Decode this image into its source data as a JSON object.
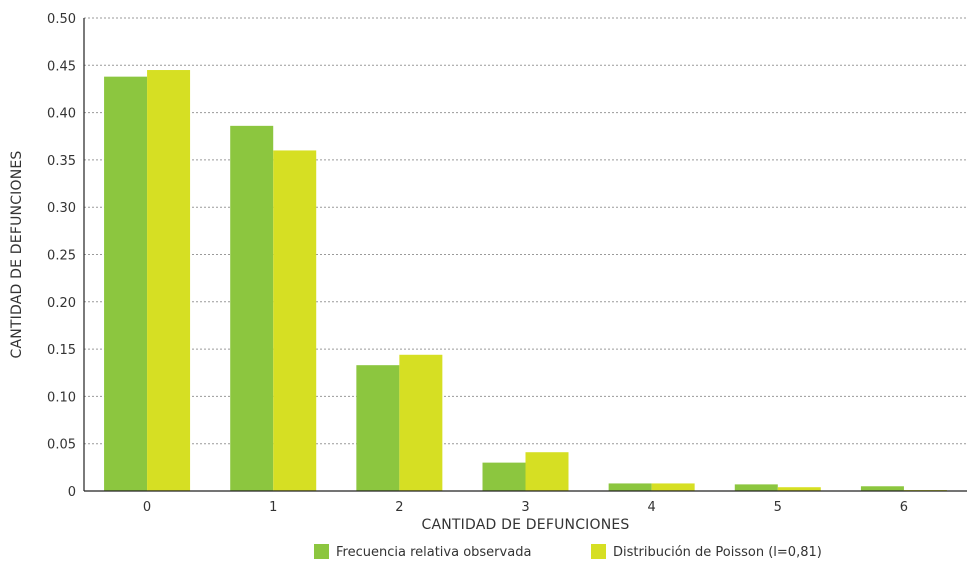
{
  "chart_data": {
    "type": "bar",
    "title": "",
    "xlabel": "CANTIDAD DE DEFUNCIONES",
    "ylabel": "CANTIDAD DE DEFUNCIONES",
    "categories": [
      "0",
      "1",
      "2",
      "3",
      "4",
      "5",
      "6"
    ],
    "ylim": [
      0,
      0.5
    ],
    "yticks": [
      "0",
      "0.05",
      "0.10",
      "0.15",
      "0.20",
      "0.25",
      "0.30",
      "0.35",
      "0.40",
      "0.45",
      "0.50"
    ],
    "grid": true,
    "legend_position": "bottom",
    "series": [
      {
        "name": "Frecuencia relativa observada",
        "color": "#8cc63f",
        "values": [
          0.438,
          0.386,
          0.133,
          0.03,
          0.008,
          0.007,
          0.005
        ]
      },
      {
        "name": "Distribución de Poisson (l=0,81)",
        "color": "#d6df23",
        "values": [
          0.445,
          0.36,
          0.144,
          0.041,
          0.008,
          0.004,
          0.001
        ]
      }
    ]
  }
}
